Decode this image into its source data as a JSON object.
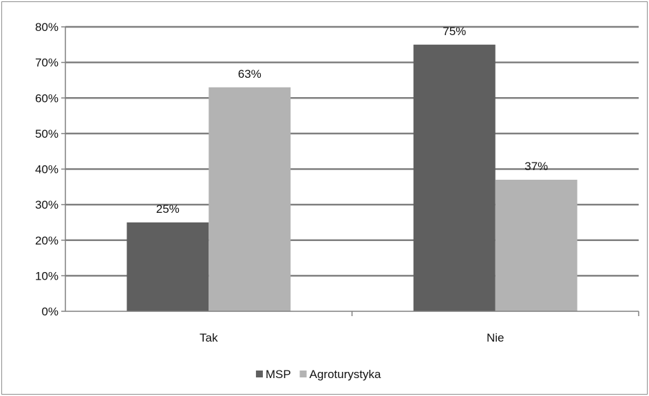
{
  "chart_data": {
    "type": "bar",
    "categories": [
      "Tak",
      "Nie"
    ],
    "series": [
      {
        "name": "MSP",
        "values": [
          25,
          75
        ],
        "labels": [
          "25%",
          "75%"
        ],
        "color": "#5f5f5f"
      },
      {
        "name": "Agroturystyka",
        "values": [
          63,
          37
        ],
        "labels": [
          "63%",
          "37%"
        ],
        "color": "#b3b3b3"
      }
    ],
    "title": "",
    "xlabel": "",
    "ylabel": "",
    "ylim": [
      0,
      80
    ],
    "yticks": [
      "0%",
      "10%",
      "20%",
      "30%",
      "40%",
      "50%",
      "60%",
      "70%",
      "80%"
    ],
    "grid": true,
    "grid_color": "#7f7f7f",
    "legend_position": "bottom"
  }
}
